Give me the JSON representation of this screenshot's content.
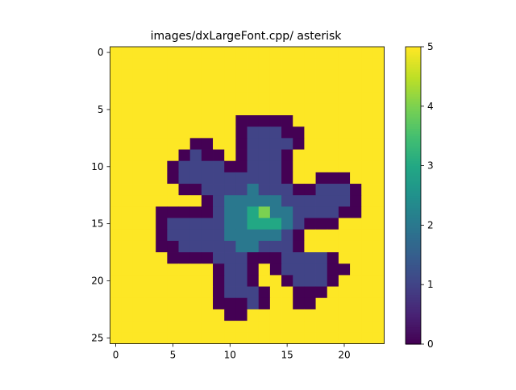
{
  "chart_data": {
    "type": "heatmap",
    "title": "images/dxLargeFont.cpp/ asterisk",
    "rows": 26,
    "cols": 24,
    "vmin": 0,
    "vmax": 5,
    "colormap": "viridis",
    "background_value": 5,
    "xticks": [
      0,
      5,
      10,
      15,
      20
    ],
    "yticks": [
      0,
      5,
      10,
      15,
      20,
      25
    ],
    "colorbar_ticks": [
      0,
      1,
      2,
      3,
      4,
      5
    ],
    "grid": [
      [
        5,
        5,
        5,
        5,
        5,
        5,
        5,
        5,
        5,
        5,
        5,
        5,
        5,
        5,
        5,
        5,
        5,
        5,
        5,
        5,
        5,
        5,
        5,
        5
      ],
      [
        5,
        5,
        5,
        5,
        5,
        5,
        5,
        5,
        5,
        5,
        5,
        5,
        5,
        5,
        5,
        5,
        5,
        5,
        5,
        5,
        5,
        5,
        5,
        5
      ],
      [
        5,
        5,
        5,
        5,
        5,
        5,
        5,
        5,
        5,
        5,
        5,
        5,
        5,
        5,
        5,
        5,
        5,
        5,
        5,
        5,
        5,
        5,
        5,
        5
      ],
      [
        5,
        5,
        5,
        5,
        5,
        5,
        5,
        5,
        5,
        5,
        5,
        5,
        5,
        5,
        5,
        5,
        5,
        5,
        5,
        5,
        5,
        5,
        5,
        5
      ],
      [
        5,
        5,
        5,
        5,
        5,
        5,
        5,
        5,
        5,
        5,
        5,
        5,
        5,
        5,
        5,
        5,
        5,
        5,
        5,
        5,
        5,
        5,
        5,
        5
      ],
      [
        5,
        5,
        5,
        5,
        5,
        5,
        5,
        5,
        5,
        5,
        5,
        5,
        5,
        5,
        5,
        5,
        5,
        5,
        5,
        5,
        5,
        5,
        5,
        5
      ],
      [
        5,
        5,
        5,
        5,
        5,
        5,
        5,
        5,
        5,
        5,
        5,
        0,
        0,
        0,
        0,
        0,
        5,
        5,
        5,
        5,
        5,
        5,
        5,
        5
      ],
      [
        5,
        5,
        5,
        5,
        5,
        5,
        5,
        5,
        5,
        5,
        5,
        0,
        1,
        1,
        1,
        0,
        0,
        5,
        5,
        5,
        5,
        5,
        5,
        5
      ],
      [
        5,
        5,
        5,
        5,
        5,
        5,
        5,
        0,
        0,
        5,
        5,
        0,
        1,
        1,
        1,
        1,
        0,
        5,
        5,
        5,
        5,
        5,
        5,
        5
      ],
      [
        5,
        5,
        5,
        5,
        5,
        5,
        0,
        1,
        0,
        0,
        5,
        0,
        1,
        1,
        1,
        0,
        5,
        5,
        5,
        5,
        5,
        5,
        5,
        5
      ],
      [
        5,
        5,
        5,
        5,
        5,
        0,
        1,
        1,
        1,
        1,
        0,
        0,
        1,
        1,
        1,
        0,
        5,
        5,
        5,
        5,
        5,
        5,
        5,
        5
      ],
      [
        5,
        5,
        5,
        5,
        5,
        0,
        1,
        1,
        1,
        1,
        1,
        1,
        1,
        1,
        1,
        0,
        5,
        5,
        0,
        0,
        0,
        5,
        5,
        5
      ],
      [
        5,
        5,
        5,
        5,
        5,
        5,
        0,
        0,
        1,
        1,
        1,
        1,
        2,
        1,
        1,
        1,
        0,
        0,
        1,
        1,
        1,
        0,
        5,
        5
      ],
      [
        5,
        5,
        5,
        5,
        5,
        5,
        5,
        5,
        0,
        1,
        2,
        2,
        2,
        2,
        2,
        1,
        1,
        1,
        1,
        1,
        1,
        0,
        5,
        5
      ],
      [
        5,
        5,
        5,
        5,
        0,
        0,
        0,
        0,
        0,
        1,
        2,
        2,
        3,
        4,
        2,
        2,
        1,
        1,
        1,
        1,
        0,
        0,
        5,
        5
      ],
      [
        5,
        5,
        5,
        5,
        0,
        1,
        1,
        1,
        1,
        1,
        2,
        2,
        3,
        3,
        3,
        2,
        1,
        0,
        0,
        0,
        5,
        5,
        5,
        5
      ],
      [
        5,
        5,
        5,
        5,
        0,
        1,
        1,
        1,
        1,
        1,
        2,
        2,
        2,
        2,
        2,
        1,
        0,
        5,
        5,
        5,
        5,
        5,
        5,
        5
      ],
      [
        5,
        5,
        5,
        5,
        0,
        0,
        1,
        1,
        1,
        1,
        1,
        2,
        2,
        1,
        1,
        1,
        0,
        5,
        5,
        5,
        5,
        5,
        5,
        5
      ],
      [
        5,
        5,
        5,
        5,
        5,
        0,
        0,
        0,
        0,
        1,
        1,
        1,
        0,
        0,
        0,
        1,
        1,
        1,
        1,
        0,
        5,
        5,
        5,
        5
      ],
      [
        5,
        5,
        5,
        5,
        5,
        5,
        5,
        5,
        5,
        0,
        1,
        1,
        0,
        5,
        0,
        1,
        1,
        1,
        1,
        0,
        0,
        5,
        5,
        5
      ],
      [
        5,
        5,
        5,
        5,
        5,
        5,
        5,
        5,
        5,
        0,
        1,
        1,
        0,
        5,
        5,
        0,
        1,
        1,
        1,
        0,
        5,
        5,
        5,
        5
      ],
      [
        5,
        5,
        5,
        5,
        5,
        5,
        5,
        5,
        5,
        0,
        1,
        1,
        1,
        0,
        5,
        5,
        0,
        0,
        0,
        5,
        5,
        5,
        5,
        5
      ],
      [
        5,
        5,
        5,
        5,
        5,
        5,
        5,
        5,
        5,
        0,
        0,
        0,
        1,
        0,
        5,
        5,
        0,
        0,
        5,
        5,
        5,
        5,
        5,
        5
      ],
      [
        5,
        5,
        5,
        5,
        5,
        5,
        5,
        5,
        5,
        5,
        0,
        0,
        5,
        5,
        5,
        5,
        5,
        5,
        5,
        5,
        5,
        5,
        5,
        5
      ],
      [
        5,
        5,
        5,
        5,
        5,
        5,
        5,
        5,
        5,
        5,
        5,
        5,
        5,
        5,
        5,
        5,
        5,
        5,
        5,
        5,
        5,
        5,
        5,
        5
      ],
      [
        5,
        5,
        5,
        5,
        5,
        5,
        5,
        5,
        5,
        5,
        5,
        5,
        5,
        5,
        5,
        5,
        5,
        5,
        5,
        5,
        5,
        5,
        5,
        5
      ]
    ]
  }
}
